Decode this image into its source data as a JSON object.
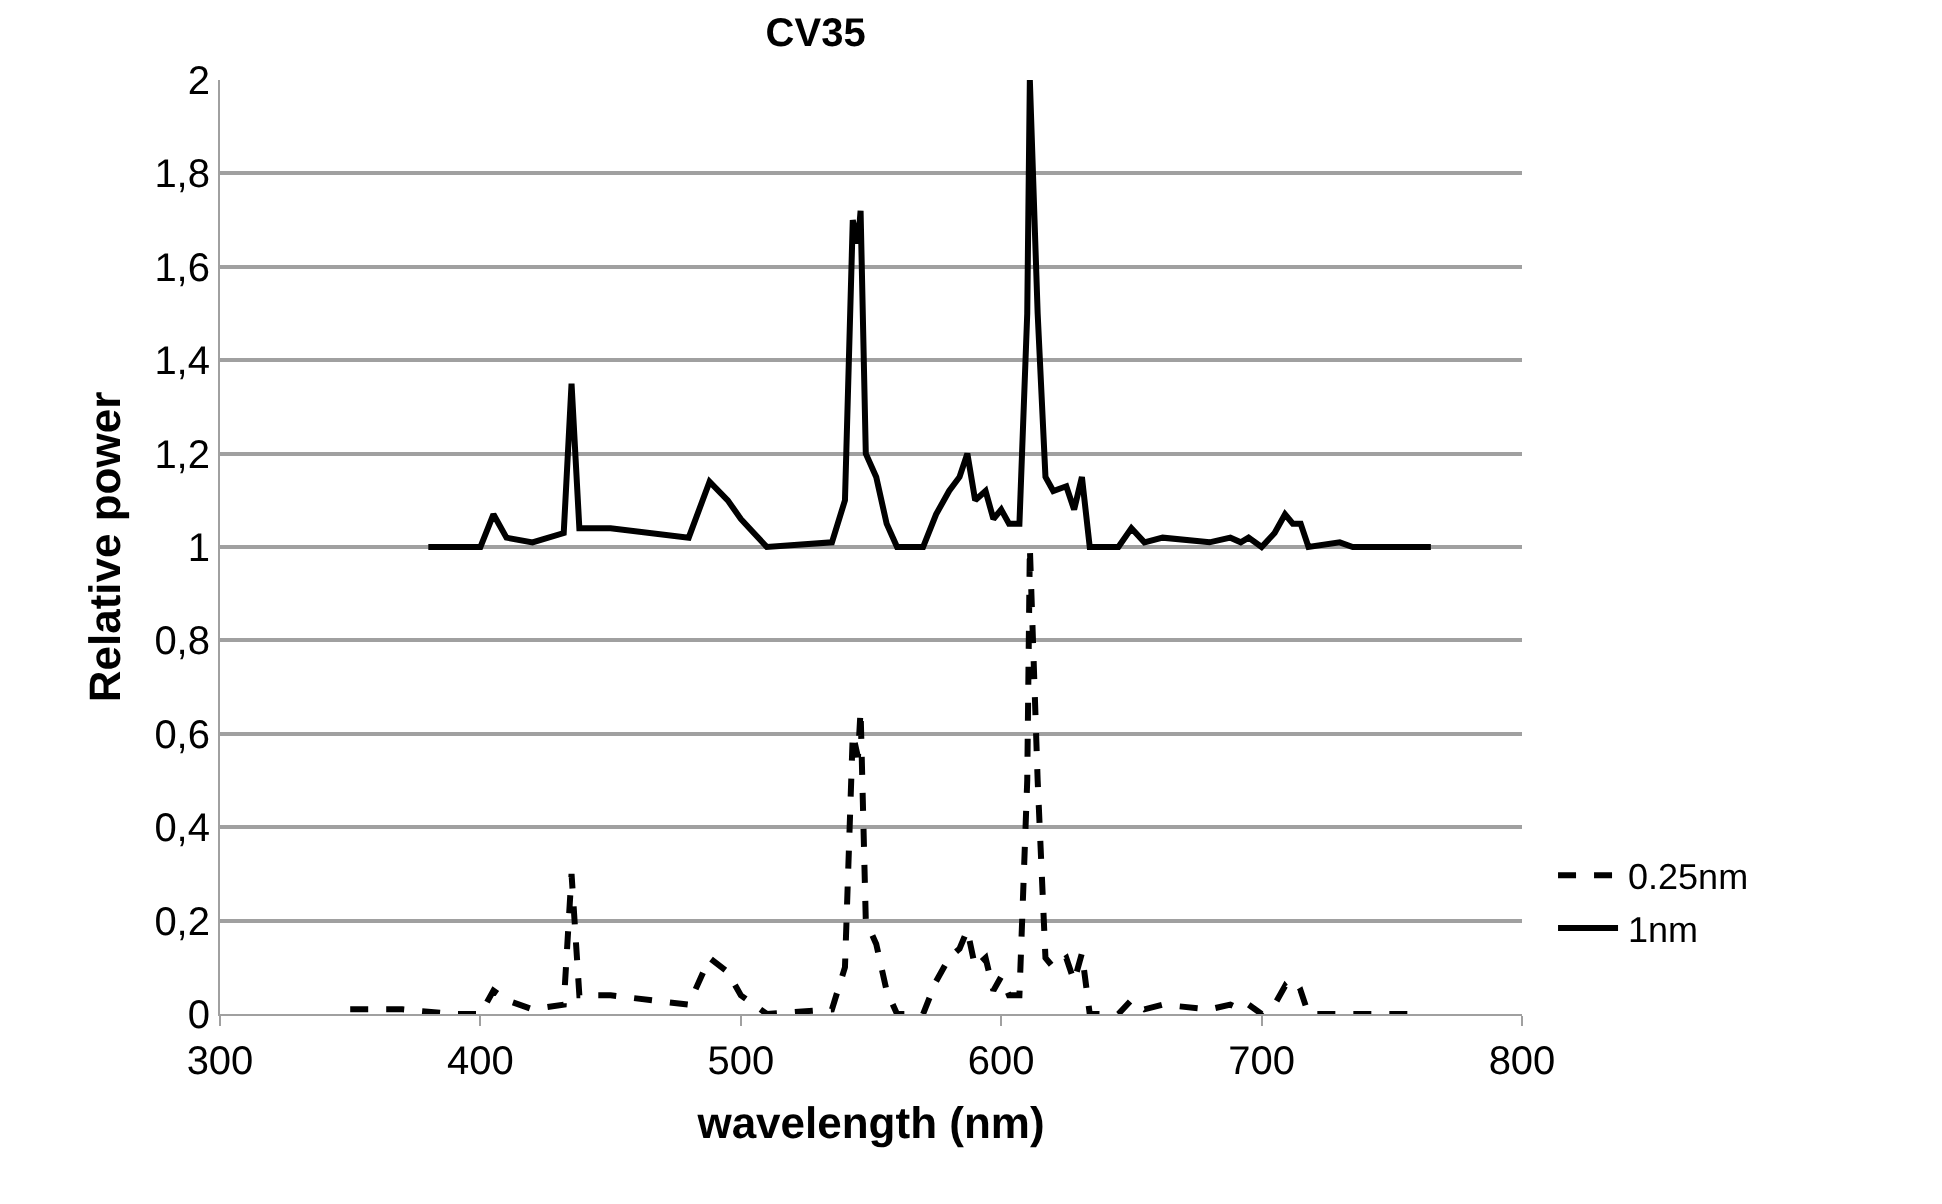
{
  "chart_data": {
    "type": "line",
    "title": "CV35",
    "xlabel": "wavelength (nm)",
    "ylabel": "Relative power",
    "xlim": [
      300,
      800
    ],
    "xticks": [
      300,
      400,
      500,
      600,
      700,
      800
    ],
    "ylim": [
      0,
      2
    ],
    "yticks": [
      0,
      {
        "value": 0.2,
        "label": "0,2"
      },
      {
        "value": 0.4,
        "label": "0,4"
      },
      {
        "value": 0.6,
        "label": "0,6"
      },
      {
        "value": 0.8,
        "label": "0,8"
      },
      1,
      {
        "value": 1.2,
        "label": "1,2"
      },
      {
        "value": 1.4,
        "label": "1,4"
      },
      {
        "value": 1.6,
        "label": "1,6"
      },
      {
        "value": 1.8,
        "label": "1,8"
      },
      2
    ],
    "grid": "y",
    "legend": "right",
    "marker": "none",
    "series": [
      {
        "name": "0.25nm",
        "color": "#000000",
        "line_style": "dashed",
        "x": [
          350,
          370,
          390,
          400,
          405,
          410,
          420,
          432,
          435,
          438,
          450,
          480,
          488,
          495,
          500,
          505,
          510,
          535,
          540,
          543,
          545,
          546,
          548,
          552,
          556,
          560,
          570,
          575,
          580,
          584,
          587,
          590,
          594,
          597,
          600,
          603,
          607,
          610,
          611,
          614,
          617,
          620,
          625,
          628,
          631,
          634,
          645,
          650,
          655,
          662,
          680,
          688,
          692,
          695,
          700,
          705,
          709,
          712,
          715,
          718,
          730,
          760
        ],
        "values": [
          0.01,
          0.01,
          0.0,
          0.0,
          0.05,
          0.03,
          0.01,
          0.02,
          0.3,
          0.04,
          0.04,
          0.02,
          0.12,
          0.09,
          0.04,
          0.02,
          0.0,
          0.01,
          0.1,
          0.6,
          0.55,
          0.65,
          0.2,
          0.15,
          0.05,
          0.0,
          0.0,
          0.07,
          0.12,
          0.14,
          0.18,
          0.1,
          0.12,
          0.05,
          0.08,
          0.04,
          0.04,
          0.5,
          1.0,
          0.5,
          0.12,
          0.1,
          0.12,
          0.07,
          0.13,
          0.0,
          0.0,
          0.03,
          0.01,
          0.02,
          0.01,
          0.02,
          0.01,
          0.02,
          0.0,
          0.02,
          0.06,
          0.04,
          0.05,
          0.0,
          0.0,
          0.0
        ]
      },
      {
        "name": "1nm",
        "color": "#000000",
        "line_style": "solid",
        "x": [
          380,
          390,
          400,
          405,
          410,
          420,
          432,
          435,
          438,
          450,
          480,
          488,
          495,
          500,
          505,
          510,
          535,
          540,
          543,
          545,
          546,
          548,
          552,
          556,
          560,
          570,
          575,
          580,
          584,
          587,
          590,
          594,
          597,
          600,
          603,
          607,
          610,
          611,
          614,
          617,
          620,
          625,
          628,
          631,
          634,
          645,
          650,
          655,
          662,
          680,
          688,
          692,
          695,
          700,
          705,
          709,
          712,
          715,
          718,
          730,
          735,
          765
        ],
        "values": [
          1.0,
          1.0,
          1.0,
          1.07,
          1.02,
          1.01,
          1.03,
          1.35,
          1.04,
          1.04,
          1.02,
          1.14,
          1.1,
          1.06,
          1.03,
          1.0,
          1.01,
          1.1,
          1.7,
          1.65,
          1.72,
          1.2,
          1.15,
          1.05,
          1.0,
          1.0,
          1.07,
          1.12,
          1.15,
          1.2,
          1.1,
          1.12,
          1.06,
          1.08,
          1.05,
          1.05,
          1.5,
          2.0,
          1.5,
          1.15,
          1.12,
          1.13,
          1.08,
          1.15,
          1.0,
          1.0,
          1.04,
          1.01,
          1.02,
          1.01,
          1.02,
          1.01,
          1.02,
          1.0,
          1.03,
          1.07,
          1.05,
          1.05,
          1.0,
          1.01,
          1.0,
          1.0
        ]
      }
    ]
  }
}
